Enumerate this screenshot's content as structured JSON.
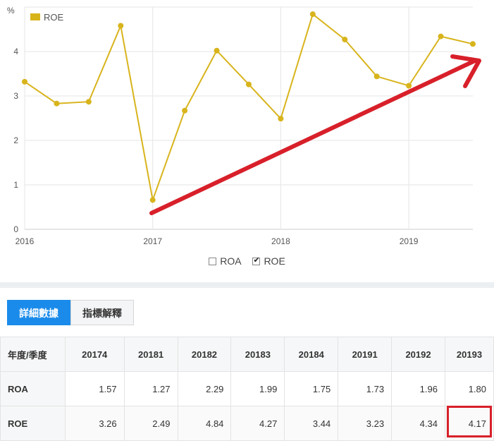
{
  "chart_data": {
    "type": "line",
    "ylabel": "%",
    "yticks": [
      "0",
      "1",
      "2",
      "3",
      "4"
    ],
    "ylim": [
      0,
      5
    ],
    "xticks": [
      "2016",
      "2017",
      "2018",
      "2019"
    ],
    "grid": true,
    "legend": "top-left",
    "series": [
      {
        "name": "ROE",
        "color": "#d8b41c",
        "x": [
          "2016 Q1",
          "2016 Q2",
          "2016 Q3",
          "2016 Q4",
          "2017 Q1",
          "2017 Q2",
          "2017 Q3",
          "2017 Q4",
          "2018 Q1",
          "2018 Q2",
          "2018 Q3",
          "2018 Q4",
          "2019 Q1",
          "2019 Q2",
          "2019 Q3"
        ],
        "values": [
          3.32,
          2.83,
          2.87,
          4.58,
          0.66,
          2.67,
          4.02,
          3.26,
          2.49,
          4.84,
          4.27,
          3.44,
          3.23,
          4.34,
          4.17
        ]
      }
    ],
    "annotation": {
      "type": "arrow",
      "color": "#d8202a"
    }
  },
  "toggles": [
    {
      "label": "ROA",
      "checked": false
    },
    {
      "label": "ROE",
      "checked": true
    }
  ],
  "tabs": {
    "detail": "詳細數據",
    "explain": "指標解釋"
  },
  "table": {
    "header": "年度/季度",
    "columns": [
      "20174",
      "20181",
      "20182",
      "20183",
      "20184",
      "20191",
      "20192",
      "20193"
    ],
    "rows": [
      {
        "label": "ROA",
        "values": [
          "1.57",
          "1.27",
          "2.29",
          "1.99",
          "1.75",
          "1.73",
          "1.96",
          "1.80"
        ]
      },
      {
        "label": "ROE",
        "values": [
          "3.26",
          "2.49",
          "4.84",
          "4.27",
          "3.44",
          "3.23",
          "4.34",
          "4.17"
        ]
      }
    ]
  },
  "highlight_color": "#d8202a"
}
